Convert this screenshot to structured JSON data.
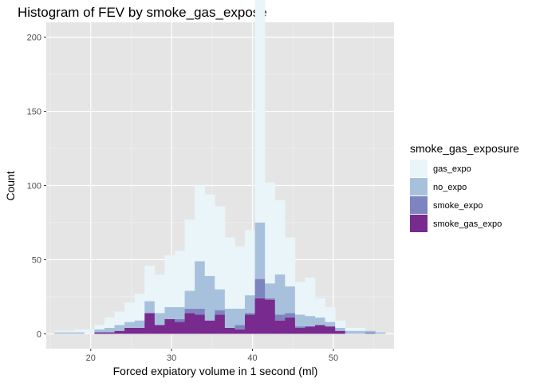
{
  "chart_data": {
    "type": "bar",
    "subtype": "stacked-histogram",
    "title": "Histogram of FEV by smoke_gas_expose",
    "xlabel": "Forced expiatory volume in 1 second (ml)",
    "ylabel": "Count",
    "xlim": [
      14.5,
      57.5
    ],
    "ylim": [
      -10,
      210
    ],
    "xticks": [
      20,
      30,
      40,
      50
    ],
    "yticks": [
      0,
      50,
      100,
      150,
      200
    ],
    "grid": true,
    "panel_background": "#e5e5e5",
    "legend": {
      "title": "smoke_gas_exposure",
      "position": "right"
    },
    "bin_width": 1.24,
    "bin_start": 15.5,
    "bins": 33,
    "series": [
      {
        "name": "gas_expo",
        "color": "#e9f5f9",
        "values": [
          1,
          1,
          2,
          3,
          3,
          7,
          9,
          13,
          18,
          24,
          26,
          35,
          38,
          48,
          51,
          55,
          56,
          48,
          42,
          44,
          160,
          68,
          50,
          33,
          22,
          26,
          13,
          10,
          5,
          2,
          2,
          0,
          0
        ]
      },
      {
        "name": "no_expo",
        "color": "#a7c1dd",
        "values": [
          1,
          1,
          1,
          0,
          2,
          3,
          4,
          4,
          5,
          8,
          8,
          8,
          8,
          12,
          32,
          30,
          14,
          13,
          11,
          12,
          38,
          10,
          27,
          18,
          8,
          7,
          5,
          3,
          2,
          2,
          2,
          1,
          1
        ]
      },
      {
        "name": "smoke_expo",
        "color": "#7e84c0",
        "values": [
          0,
          0,
          0,
          0,
          0,
          0,
          0,
          0,
          0,
          0,
          0,
          0,
          2,
          3,
          4,
          0,
          3,
          0,
          3,
          1,
          13,
          1,
          4,
          3,
          1,
          0,
          0,
          0,
          0,
          0,
          0,
          1,
          0
        ]
      },
      {
        "name": "smoke_gas_expo",
        "color": "#782a8e",
        "values": [
          0,
          0,
          0,
          0,
          1,
          1,
          2,
          4,
          4,
          14,
          6,
          10,
          8,
          14,
          13,
          9,
          13,
          4,
          3,
          13,
          24,
          23,
          9,
          11,
          4,
          5,
          6,
          5,
          2,
          0,
          0,
          0,
          0
        ]
      }
    ]
  }
}
